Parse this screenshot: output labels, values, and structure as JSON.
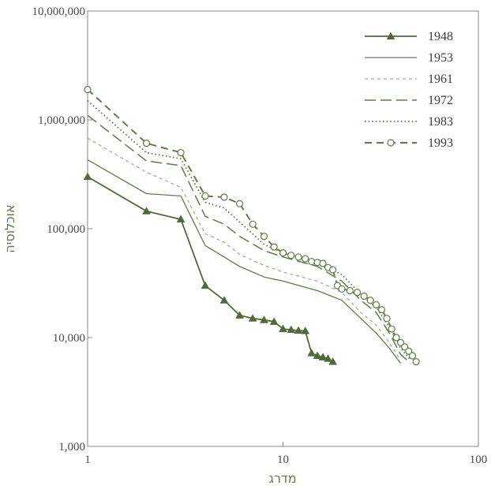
{
  "chart_data": {
    "type": "line",
    "title": "",
    "xlabel": "מדרג",
    "ylabel": "אוכלוסיה",
    "x_scale": "log",
    "y_scale": "log",
    "xlim": [
      1,
      100
    ],
    "ylim": [
      1000,
      10000000
    ],
    "x_ticks": [
      1,
      10,
      100
    ],
    "x_tick_labels": [
      "1",
      "10",
      "100"
    ],
    "y_ticks": [
      1000,
      10000,
      100000,
      1000000,
      10000000
    ],
    "y_tick_labels": [
      "1,000",
      "10,000",
      "100,000",
      "1,000,000",
      "10,000,000"
    ],
    "grid": false,
    "legend_position": "top-right",
    "series": [
      {
        "name": "1948",
        "style": "solid-triangle",
        "color": "#4f6a3a",
        "points": [
          [
            1,
            300000
          ],
          [
            2,
            145000
          ],
          [
            3,
            122000
          ],
          [
            4,
            30000
          ],
          [
            5,
            22000
          ],
          [
            6,
            16000
          ],
          [
            7,
            15000
          ],
          [
            8,
            14500
          ],
          [
            9,
            14000
          ],
          [
            10,
            12000
          ],
          [
            11,
            11800
          ],
          [
            12,
            11600
          ],
          [
            13,
            11500
          ],
          [
            14,
            7200
          ],
          [
            15,
            6800
          ],
          [
            16,
            6600
          ],
          [
            17,
            6400
          ],
          [
            18,
            6000
          ]
        ]
      },
      {
        "name": "1953",
        "style": "solid",
        "color": "#5d7d45",
        "points": [
          [
            1,
            430000
          ],
          [
            2,
            210000
          ],
          [
            3,
            200000
          ],
          [
            4,
            70000
          ],
          [
            5,
            55000
          ],
          [
            6,
            45000
          ],
          [
            8,
            36000
          ],
          [
            10,
            33000
          ],
          [
            15,
            27000
          ],
          [
            20,
            22000
          ],
          [
            25,
            15000
          ],
          [
            30,
            11000
          ],
          [
            35,
            8000
          ],
          [
            40,
            5800
          ]
        ]
      },
      {
        "name": "1961",
        "style": "short-dash",
        "color": "#8fa678",
        "points": [
          [
            1,
            680000
          ],
          [
            2,
            330000
          ],
          [
            3,
            240000
          ],
          [
            4,
            90000
          ],
          [
            5,
            75000
          ],
          [
            6,
            58000
          ],
          [
            8,
            46000
          ],
          [
            10,
            40000
          ],
          [
            15,
            33000
          ],
          [
            20,
            26000
          ],
          [
            25,
            17000
          ],
          [
            30,
            13000
          ],
          [
            35,
            9000
          ],
          [
            40,
            6200
          ]
        ]
      },
      {
        "name": "1972",
        "style": "long-dash",
        "color": "#5d7d45",
        "points": [
          [
            1,
            1100000
          ],
          [
            2,
            420000
          ],
          [
            3,
            380000
          ],
          [
            4,
            130000
          ],
          [
            5,
            110000
          ],
          [
            6,
            85000
          ],
          [
            8,
            63000
          ],
          [
            10,
            55000
          ],
          [
            15,
            45000
          ],
          [
            20,
            33000
          ],
          [
            25,
            22000
          ],
          [
            30,
            17000
          ],
          [
            35,
            11000
          ],
          [
            40,
            7000
          ],
          [
            45,
            5800
          ]
        ]
      },
      {
        "name": "1983",
        "style": "dotted",
        "color": "#5d7d45",
        "points": [
          [
            1,
            1500000
          ],
          [
            2,
            500000
          ],
          [
            3,
            440000
          ],
          [
            4,
            175000
          ],
          [
            5,
            155000
          ],
          [
            6,
            115000
          ],
          [
            8,
            72000
          ],
          [
            10,
            60000
          ],
          [
            15,
            48000
          ],
          [
            20,
            38000
          ],
          [
            25,
            25000
          ],
          [
            30,
            19000
          ],
          [
            35,
            12500
          ],
          [
            40,
            8000
          ],
          [
            45,
            6200
          ]
        ]
      },
      {
        "name": "1993",
        "style": "dash-circle",
        "color": "#5d7d45",
        "points": [
          [
            1,
            1900000
          ],
          [
            2,
            610000
          ],
          [
            3,
            500000
          ],
          [
            4,
            200000
          ],
          [
            5,
            195000
          ],
          [
            6,
            170000
          ],
          [
            7,
            110000
          ],
          [
            8,
            85000
          ],
          [
            9,
            68000
          ],
          [
            10,
            60000
          ],
          [
            11,
            57000
          ],
          [
            12,
            55000
          ],
          [
            13,
            53000
          ],
          [
            14,
            50000
          ],
          [
            15,
            49000
          ],
          [
            16,
            48000
          ],
          [
            17,
            44000
          ],
          [
            18,
            42000
          ],
          [
            19,
            30000
          ],
          [
            20,
            28000
          ],
          [
            22,
            27000
          ],
          [
            24,
            26000
          ],
          [
            26,
            24000
          ],
          [
            28,
            22000
          ],
          [
            30,
            20000
          ],
          [
            32,
            18000
          ],
          [
            34,
            15000
          ],
          [
            36,
            12000
          ],
          [
            38,
            10000
          ],
          [
            40,
            9000
          ],
          [
            42,
            8200
          ],
          [
            44,
            7500
          ],
          [
            46,
            6800
          ],
          [
            48,
            6000
          ]
        ]
      }
    ]
  }
}
